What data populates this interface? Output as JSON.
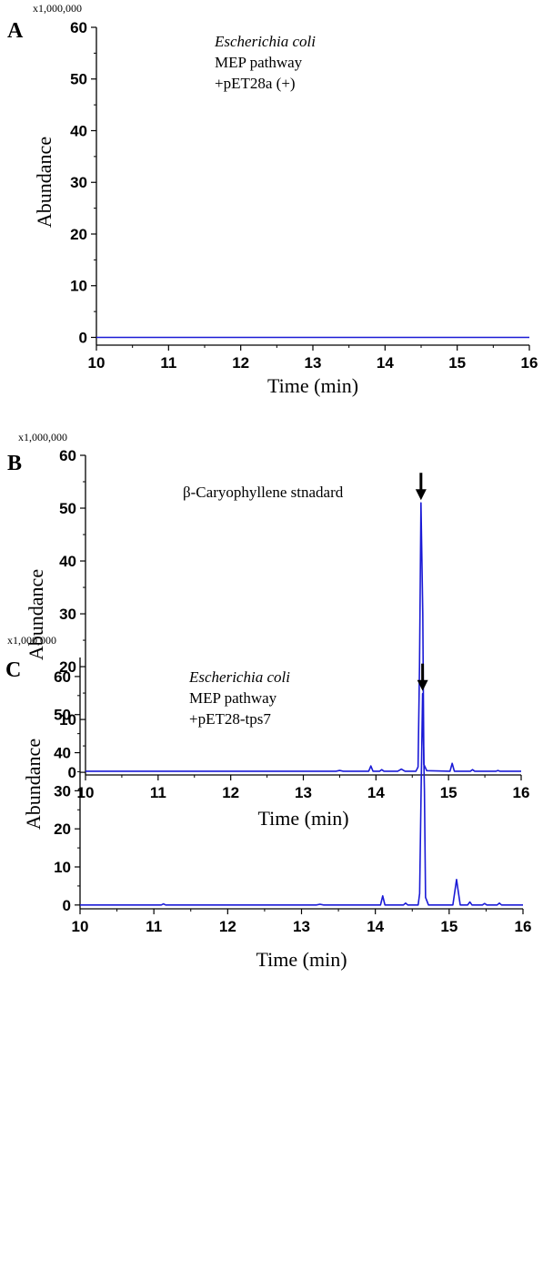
{
  "chart_data": [
    {
      "type": "line",
      "panel_label": "A",
      "multiplier": "x1,000,000",
      "annotation": [
        {
          "text": "Escherichia coli",
          "italic": true
        },
        {
          "text": "MEP pathway",
          "italic": false
        },
        {
          "text": "+pET28a (+)",
          "italic": false
        }
      ],
      "xlabel": "Time (min)",
      "ylabel": "Abundance",
      "xlim": [
        10,
        16
      ],
      "ylim": [
        -1.5,
        60
      ],
      "xticks": [
        10,
        11,
        12,
        13,
        14,
        15,
        16
      ],
      "yticks": [
        0,
        10,
        20,
        30,
        40,
        50,
        60
      ],
      "series": [
        {
          "color": "#1a1ad6",
          "points": [
            [
              10,
              0
            ],
            [
              16,
              0
            ]
          ]
        }
      ],
      "arrow_at": null
    },
    {
      "type": "line",
      "panel_label": "B",
      "multiplier": "x1,000,000",
      "annotation": [
        {
          "text": "β-Caryophyllene stnadard",
          "italic": false
        }
      ],
      "xlabel": "Time (min)",
      "ylabel": "Abundance",
      "xlim": [
        10,
        16
      ],
      "ylim": [
        -0.5,
        60
      ],
      "xticks": [
        10,
        11,
        12,
        13,
        14,
        15,
        16
      ],
      "yticks": [
        0,
        10,
        20,
        30,
        40,
        50,
        60
      ],
      "series": [
        {
          "color": "#1a1ad6",
          "points": [
            [
              10,
              0.2
            ],
            [
              13.45,
              0.2
            ],
            [
              13.5,
              0.35
            ],
            [
              13.55,
              0.2
            ],
            [
              13.9,
              0.2
            ],
            [
              13.93,
              1.2
            ],
            [
              13.96,
              0.2
            ],
            [
              14.05,
              0.2
            ],
            [
              14.08,
              0.5
            ],
            [
              14.11,
              0.2
            ],
            [
              14.3,
              0.2
            ],
            [
              14.35,
              0.6
            ],
            [
              14.4,
              0.2
            ],
            [
              14.55,
              0.2
            ],
            [
              14.58,
              1.0
            ],
            [
              14.6,
              20
            ],
            [
              14.62,
              51
            ],
            [
              14.645,
              30
            ],
            [
              14.66,
              1.5
            ],
            [
              14.7,
              0.3
            ],
            [
              15.02,
              0.2
            ],
            [
              15.05,
              1.7
            ],
            [
              15.08,
              0.2
            ],
            [
              15.3,
              0.2
            ],
            [
              15.33,
              0.5
            ],
            [
              15.36,
              0.2
            ],
            [
              15.65,
              0.2
            ],
            [
              15.68,
              0.35
            ],
            [
              15.71,
              0.2
            ],
            [
              16,
              0.2
            ]
          ]
        }
      ],
      "arrow_at": {
        "x": 14.62,
        "y": 51
      }
    },
    {
      "type": "line",
      "panel_label": "C",
      "multiplier": "x1,000,000",
      "annotation": [
        {
          "text": "Escherichia coli",
          "italic": true
        },
        {
          "text": "MEP pathway",
          "italic": false
        },
        {
          "text": "+pET28-tps7",
          "italic": false
        }
      ],
      "xlabel": "Time (min)",
      "ylabel": "Abundance",
      "xlim": [
        10,
        16
      ],
      "ylim": [
        -1,
        65
      ],
      "xticks": [
        10,
        11,
        12,
        13,
        14,
        15,
        16
      ],
      "yticks": [
        0,
        10,
        20,
        30,
        40,
        50,
        60
      ],
      "series": [
        {
          "color": "#1a1ad6",
          "points": [
            [
              10,
              0
            ],
            [
              11.1,
              0
            ],
            [
              11.13,
              0.3
            ],
            [
              11.16,
              0
            ],
            [
              13.2,
              0
            ],
            [
              13.25,
              0.2
            ],
            [
              13.3,
              0
            ],
            [
              14.07,
              0
            ],
            [
              14.1,
              2.4
            ],
            [
              14.13,
              0
            ],
            [
              14.38,
              0
            ],
            [
              14.41,
              0.5
            ],
            [
              14.44,
              0
            ],
            [
              14.58,
              0
            ],
            [
              14.6,
              3
            ],
            [
              14.62,
              30
            ],
            [
              14.64,
              55.5
            ],
            [
              14.665,
              30
            ],
            [
              14.68,
              2
            ],
            [
              14.72,
              0
            ],
            [
              15.05,
              0
            ],
            [
              15.08,
              4
            ],
            [
              15.1,
              6.7
            ],
            [
              15.12,
              4
            ],
            [
              15.15,
              0
            ],
            [
              15.25,
              0
            ],
            [
              15.28,
              0.8
            ],
            [
              15.31,
              0
            ],
            [
              15.45,
              0
            ],
            [
              15.48,
              0.4
            ],
            [
              15.51,
              0
            ],
            [
              15.65,
              0
            ],
            [
              15.68,
              0.5
            ],
            [
              15.71,
              0
            ],
            [
              16,
              0
            ]
          ]
        }
      ],
      "arrow_at": {
        "x": 14.64,
        "y": 55.5
      }
    }
  ]
}
